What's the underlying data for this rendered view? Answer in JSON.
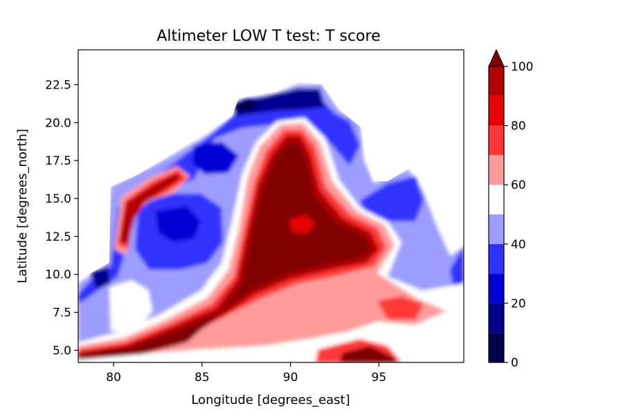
{
  "chart_data": {
    "type": "contourf",
    "title": "Altimeter LOW T test: T score",
    "xlabel": "Longitude [degrees_east]",
    "ylabel": "Latitude [degrees_north]",
    "xlim": [
      78,
      99.8
    ],
    "ylim": [
      4.2,
      24.8
    ],
    "xticks": [
      80,
      85,
      90,
      95
    ],
    "yticks": [
      5.0,
      7.5,
      10.0,
      12.5,
      15.0,
      17.5,
      20.0,
      22.5
    ],
    "colorbar": {
      "range": [
        0,
        100
      ],
      "ticks": [
        0,
        20,
        40,
        60,
        80,
        100
      ],
      "levels": [
        0,
        10,
        20,
        30,
        40,
        50,
        60,
        70,
        80,
        90,
        100
      ],
      "extend": "max",
      "colormap": "seismic",
      "level_colors": [
        "#00004c",
        "#00008f",
        "#0000d3",
        "#3131ff",
        "#9d9dff",
        "#ffffff",
        "#ff9b9b",
        "#ff3737",
        "#e60000",
        "#b30000"
      ],
      "over_color": "#800000"
    },
    "features": [
      {
        "region": "central Bay of Bengal (~86-93E, 6-19N)",
        "score_range": "90-100+"
      },
      {
        "region": "western boundary blob (~81-85E, 11-16N)",
        "score_range": "10-40"
      },
      {
        "region": "northern coastal band (~85-90E, 20-22N)",
        "score_range": "0-20"
      },
      {
        "region": "southern open ocean (~92-99E, 5-9N)",
        "score_range": "50-70"
      }
    ]
  }
}
